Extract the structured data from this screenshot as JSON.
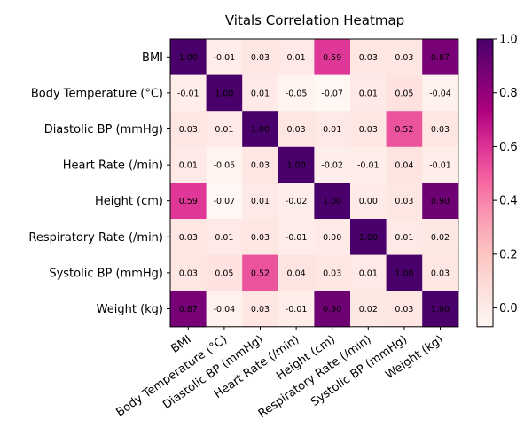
{
  "chart_data": {
    "type": "heatmap",
    "title": "Vitals Correlation Heatmap",
    "x_labels": [
      "BMI",
      "Body Temperature (°C)",
      "Diastolic BP (mmHg)",
      "Heart Rate (/min)",
      "Height (cm)",
      "Respiratory Rate (/min)",
      "Systolic BP (mmHg)",
      "Weight (kg)"
    ],
    "y_labels": [
      "BMI",
      "Body Temperature (°C)",
      "Diastolic BP (mmHg)",
      "Heart Rate (/min)",
      "Height (cm)",
      "Respiratory Rate (/min)",
      "Systolic BP (mmHg)",
      "Weight (kg)"
    ],
    "matrix": [
      [
        1.0,
        -0.01,
        0.03,
        0.01,
        0.59,
        0.03,
        0.03,
        0.87
      ],
      [
        -0.01,
        1.0,
        0.01,
        -0.05,
        -0.07,
        0.01,
        0.05,
        -0.04
      ],
      [
        0.03,
        0.01,
        1.0,
        0.03,
        0.01,
        0.03,
        0.52,
        0.03
      ],
      [
        0.01,
        -0.05,
        0.03,
        1.0,
        -0.02,
        -0.01,
        0.04,
        -0.01
      ],
      [
        0.59,
        -0.07,
        0.01,
        -0.02,
        1.0,
        0.0,
        0.03,
        0.9
      ],
      [
        0.03,
        0.01,
        0.03,
        -0.01,
        0.0,
        1.0,
        0.01,
        0.02
      ],
      [
        0.03,
        0.05,
        0.52,
        0.04,
        0.03,
        0.01,
        1.0,
        0.03
      ],
      [
        0.87,
        -0.04,
        0.03,
        -0.01,
        0.9,
        0.02,
        0.03,
        1.0
      ]
    ],
    "colorscale": "RdPu",
    "vmin": -0.07,
    "vmax": 1.0,
    "colorbar_ticks": [
      "0.0",
      "0.2",
      "0.4",
      "0.6",
      "0.8",
      "1.0"
    ],
    "colorbar_tick_values": [
      0.0,
      0.2,
      0.4,
      0.6,
      0.8,
      1.0
    ]
  }
}
